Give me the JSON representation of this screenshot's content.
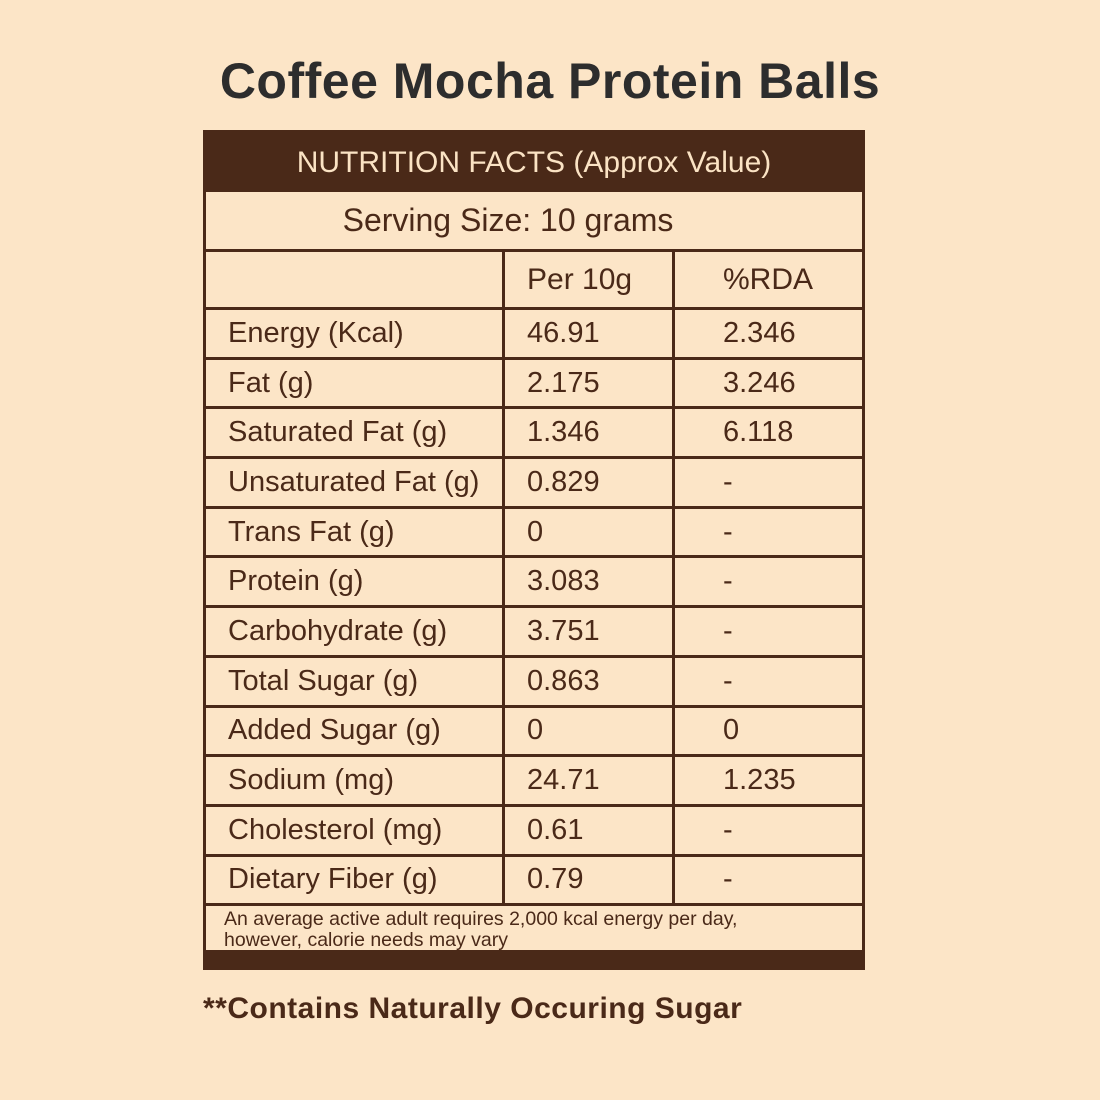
{
  "page": {
    "title": "Coffee Mocha Protein Balls",
    "footnote": "**Contains Naturally Occuring Sugar",
    "colors": {
      "background": "#FCE5C7",
      "brown": "#4A2918",
      "header_text": "#FBE3C4",
      "title_text": "#2D2D2D"
    }
  },
  "table": {
    "header": "NUTRITION FACTS (Approx Value)",
    "serving_size": "Serving Size: 10 grams",
    "columns": {
      "label": "",
      "per_10g": "Per 10g",
      "rda": "%RDA"
    },
    "rows": [
      {
        "label": "Energy (Kcal)",
        "per_10g": "46.91",
        "rda": "2.346"
      },
      {
        "label": "Fat (g)",
        "per_10g": "2.175",
        "rda": "3.246"
      },
      {
        "label": "Saturated Fat (g)",
        "per_10g": "1.346",
        "rda": "6.118"
      },
      {
        "label": "Unsaturated Fat (g)",
        "per_10g": "0.829",
        "rda": "-"
      },
      {
        "label": "Trans Fat (g)",
        "per_10g": "0",
        "rda": "-"
      },
      {
        "label": "Protein (g)",
        "per_10g": "3.083",
        "rda": "-"
      },
      {
        "label": "Carbohydrate (g)",
        "per_10g": "3.751",
        "rda": "-"
      },
      {
        "label": "Total Sugar (g)",
        "per_10g": "0.863",
        "rda": "-"
      },
      {
        "label": "Added Sugar (g)",
        "per_10g": "0",
        "rda": "0"
      },
      {
        "label": "Sodium (mg)",
        "per_10g": "24.71",
        "rda": "1.235"
      },
      {
        "label": "Cholesterol (mg)",
        "per_10g": "0.61",
        "rda": "-"
      },
      {
        "label": "Dietary Fiber (g)",
        "per_10g": "0.79",
        "rda": "-"
      }
    ],
    "disclaimer_line1": "An average active adult requires 2,000 kcal energy per day,",
    "disclaimer_line2": "however, calorie needs may vary"
  }
}
